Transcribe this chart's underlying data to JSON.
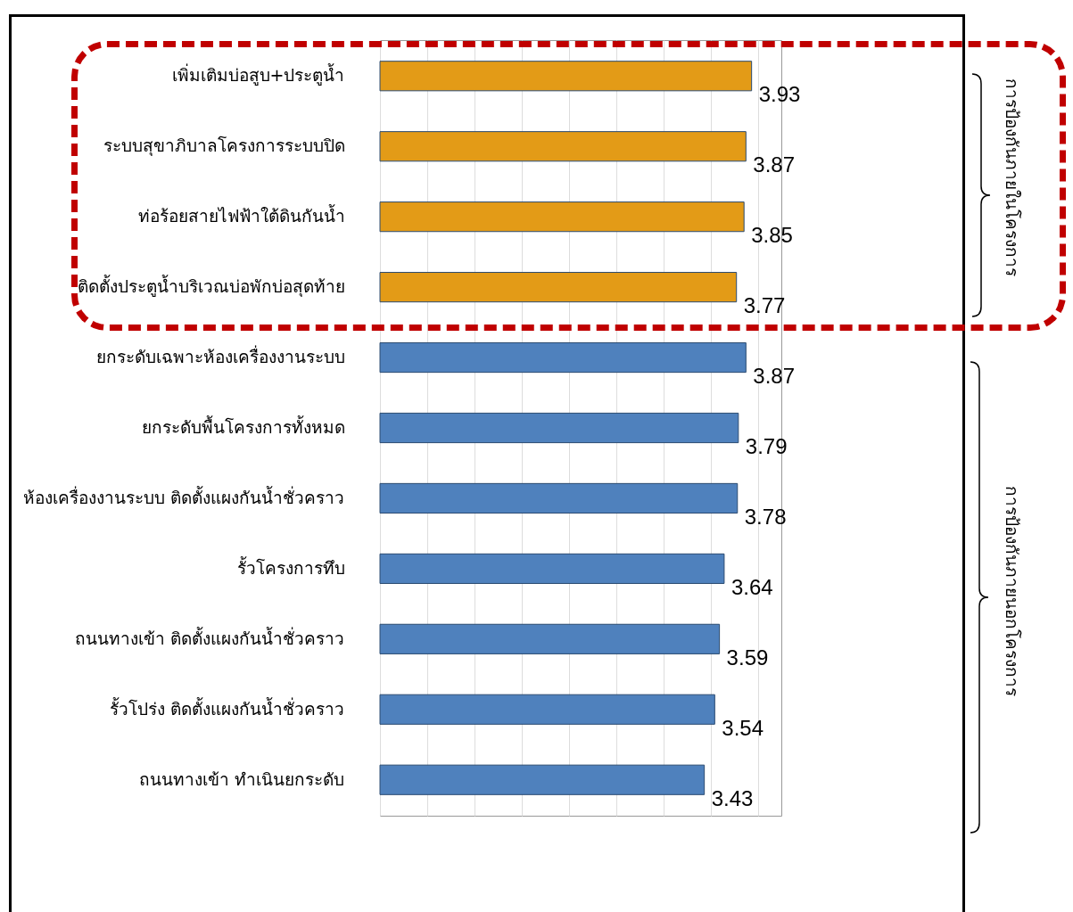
{
  "chart_data": {
    "type": "bar",
    "orientation": "horizontal",
    "categories": [
      "เพิ่มเติมบ่อสูบ+ประตูน้ำ",
      "ระบบสุขาภิบาลโครงการระบบปิด",
      "ท่อร้อยสายไฟฟ้าใต้ดินกันน้ำ",
      "ติดตั้งประตูน้ำบริเวณบ่อพักบ่อสุดท้าย",
      "ยกระดับเฉพาะห้องเครื่องงานระบบ",
      "ยกระดับพื้นโครงการทั้งหมด",
      "ห้องเครื่องงานระบบ ติดตั้งแผงกันน้ำชั่วคราว",
      "รั้วโครงการทึบ",
      "ถนนทางเข้า ติดตั้งแผงกันน้ำชั่วคราว",
      "รั้วโปร่ง ติดตั้งแผงกันน้ำชั่วคราว",
      "ถนนทางเข้า ทำเนินยกระดับ"
    ],
    "values": [
      3.93,
      3.87,
      3.85,
      3.77,
      3.87,
      3.79,
      3.78,
      3.64,
      3.59,
      3.54,
      3.43
    ],
    "colors": [
      "#e39b17",
      "#e39b17",
      "#e39b17",
      "#e39b17",
      "#4f81bd",
      "#4f81bd",
      "#4f81bd",
      "#4f81bd",
      "#4f81bd",
      "#4f81bd",
      "#4f81bd"
    ],
    "data_labels": true,
    "grid": "x",
    "tick_labels": "y",
    "annotations": [
      "การป้องกันภายในโครงการ",
      "การป้องกันภายนอกโครงการ"
    ]
  }
}
